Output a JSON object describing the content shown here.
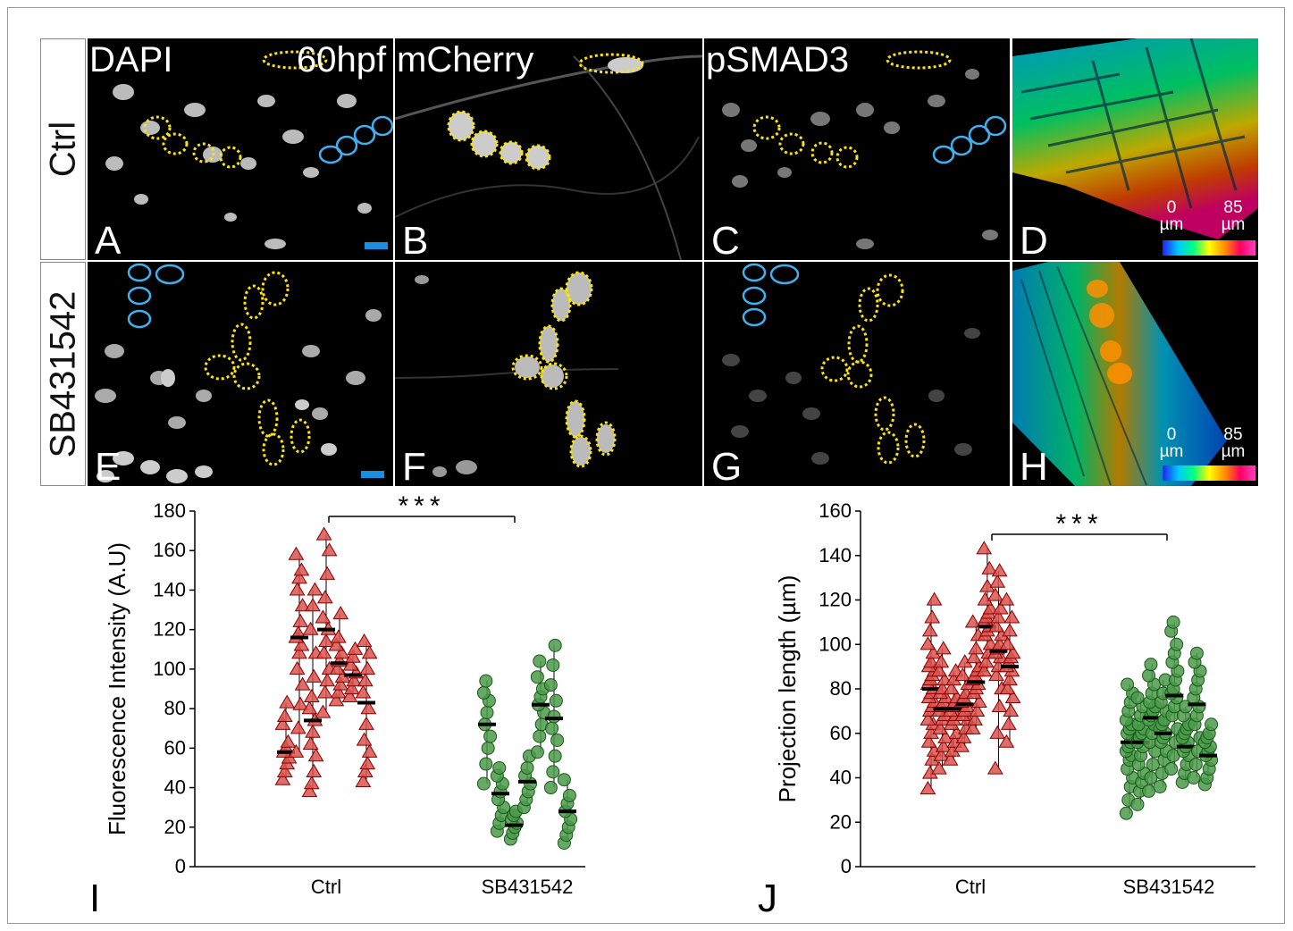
{
  "row_labels": [
    "Ctrl",
    "SB431542"
  ],
  "panels": [
    {
      "letter": "A",
      "title": "DAPI",
      "extra": "60hpf"
    },
    {
      "letter": "B",
      "title": "mCherry"
    },
    {
      "letter": "C",
      "title": "pSMAD3"
    },
    {
      "letter": "D"
    },
    {
      "letter": "E"
    },
    {
      "letter": "F"
    },
    {
      "letter": "G"
    },
    {
      "letter": "H"
    }
  ],
  "depth_colorbar": {
    "min_value": "0",
    "max_value": "85",
    "unit": "µm"
  },
  "chart_data": [
    {
      "panel_letter": "I",
      "type": "scatter",
      "ylabel": "Fluorescence Intensity (A.U)",
      "xlabel": "",
      "categories": [
        "Ctrl",
        "SB431542"
      ],
      "ylim": [
        0,
        180
      ],
      "yticks": [
        0,
        20,
        40,
        60,
        80,
        100,
        120,
        140,
        160,
        180
      ],
      "significance": "***",
      "series": [
        {
          "group": "Ctrl",
          "marker": "triangle",
          "color": "#d9534f",
          "edge": "#8b0000",
          "replicates": [
            {
              "values": [
                44,
                48,
                52,
                55,
                58,
                60,
                63,
                72,
                76,
                83
              ],
              "mean": 58
            },
            {
              "values": [
                58,
                70,
                82,
                92,
                100,
                108,
                112,
                116,
                118,
                124,
                132,
                140,
                146,
                150,
                158
              ],
              "mean": 116
            },
            {
              "values": [
                38,
                42,
                48,
                56,
                62,
                68,
                74,
                80,
                86,
                96,
                108,
                120,
                132,
                140
              ],
              "mean": 74
            },
            {
              "values": [
                78,
                88,
                94,
                100,
                108,
                114,
                120,
                126,
                136,
                148,
                160,
                168
              ],
              "mean": 120
            },
            {
              "values": [
                84,
                88,
                92,
                96,
                100,
                104,
                108,
                112,
                116,
                128
              ],
              "mean": 103
            },
            {
              "values": [
                86,
                90,
                94,
                98,
                102,
                106,
                110
              ],
              "mean": 97
            },
            {
              "values": [
                43,
                48,
                52,
                58,
                64,
                72,
                80,
                88,
                94,
                100,
                108,
                114
              ],
              "mean": 83
            }
          ]
        },
        {
          "group": "SB431542",
          "marker": "circle",
          "color": "#4a9a4a",
          "edge": "#1a5a1a",
          "replicates": [
            {
              "values": [
                42,
                52,
                60,
                66,
                72,
                78,
                84,
                88,
                94
              ],
              "mean": 72
            },
            {
              "values": [
                18,
                22,
                26,
                30,
                34,
                38,
                42,
                46,
                50
              ],
              "mean": 37
            },
            {
              "values": [
                14,
                17,
                20,
                22,
                24,
                26,
                28
              ],
              "mean": 21
            },
            {
              "values": [
                30,
                34,
                38,
                42,
                46,
                50,
                56
              ],
              "mean": 43
            },
            {
              "values": [
                58,
                66,
                72,
                78,
                82,
                86,
                90,
                96,
                104
              ],
              "mean": 82
            },
            {
              "values": [
                40,
                48,
                56,
                64,
                70,
                76,
                84,
                92,
                102,
                112
              ],
              "mean": 75
            },
            {
              "values": [
                12,
                16,
                20,
                24,
                28,
                32,
                36,
                44
              ],
              "mean": 28
            }
          ]
        }
      ]
    },
    {
      "panel_letter": "J",
      "type": "scatter",
      "ylabel": "Projection length (µm)",
      "xlabel": "",
      "categories": [
        "Ctrl",
        "SB431542"
      ],
      "ylim": [
        0,
        160
      ],
      "yticks": [
        0,
        20,
        40,
        60,
        80,
        100,
        120,
        140,
        160
      ],
      "significance": "***",
      "series": [
        {
          "group": "Ctrl",
          "marker": "triangle",
          "color": "#d9534f",
          "edge": "#8b0000",
          "replicates": [
            {
              "values": [
                35,
                42,
                48,
                52,
                56,
                60,
                64,
                66,
                70,
                72,
                74,
                76,
                78,
                80,
                82,
                84,
                86,
                88,
                90,
                92,
                96,
                100,
                106,
                112,
                120
              ],
              "mean": 80
            },
            {
              "values": [
                44,
                50,
                54,
                58,
                62,
                66,
                68,
                70,
                72,
                74,
                76,
                78,
                80,
                84,
                88,
                92,
                98
              ],
              "mean": 71
            },
            {
              "values": [
                48,
                52,
                56,
                60,
                64,
                66,
                68,
                70,
                72,
                74,
                76,
                80,
                84,
                88
              ],
              "mean": 71
            },
            {
              "values": [
                54,
                58,
                62,
                66,
                68,
                70,
                72,
                74,
                76,
                78,
                82,
                86,
                92
              ],
              "mean": 73
            },
            {
              "values": [
                62,
                66,
                70,
                74,
                78,
                80,
                82,
                84,
                86,
                88,
                90,
                94,
                98,
                104,
                110
              ],
              "mean": 83
            },
            {
              "values": [
                88,
                92,
                96,
                100,
                104,
                106,
                108,
                110,
                112,
                114,
                116,
                120,
                126,
                134,
                143
              ],
              "mean": 108
            },
            {
              "values": [
                44,
                60,
                72,
                80,
                86,
                90,
                94,
                96,
                98,
                100,
                104,
                108,
                112,
                116,
                122,
                128,
                133
              ],
              "mean": 97
            },
            {
              "values": [
                56,
                64,
                70,
                76,
                80,
                84,
                88,
                90,
                92,
                94,
                96,
                100,
                106,
                112,
                120
              ],
              "mean": 90
            }
          ]
        },
        {
          "group": "SB431542",
          "marker": "circle",
          "color": "#4a9a4a",
          "edge": "#1a5a1a",
          "replicates": [
            {
              "values": [
                24,
                30,
                36,
                40,
                44,
                48,
                50,
                52,
                54,
                56,
                58,
                60,
                62,
                64,
                66,
                70,
                74,
                78,
                82
              ],
              "mean": 56
            },
            {
              "values": [
                28,
                34,
                38,
                42,
                46,
                50,
                54,
                56,
                58,
                60,
                62,
                64,
                68,
                72,
                76
              ],
              "mean": 56
            },
            {
              "values": [
                34,
                40,
                46,
                52,
                56,
                60,
                64,
                66,
                68,
                70,
                72,
                74,
                78,
                82,
                86,
                91
              ],
              "mean": 67
            },
            {
              "values": [
                36,
                42,
                48,
                52,
                56,
                58,
                60,
                62,
                64,
                66,
                70,
                74,
                78,
                84
              ],
              "mean": 60
            },
            {
              "values": [
                44,
                50,
                56,
                62,
                68,
                72,
                76,
                78,
                80,
                84,
                88,
                92,
                96,
                100,
                106,
                110
              ],
              "mean": 77
            },
            {
              "values": [
                38,
                42,
                46,
                50,
                52,
                54,
                56,
                58,
                60,
                62,
                64,
                68,
                72
              ],
              "mean": 54
            },
            {
              "values": [
                40,
                46,
                52,
                58,
                64,
                68,
                72,
                76,
                80,
                84,
                88,
                92,
                96
              ],
              "mean": 73
            },
            {
              "values": [
                37,
                40,
                44,
                48,
                50,
                52,
                54,
                56,
                58,
                60,
                64
              ],
              "mean": 50
            }
          ]
        }
      ]
    }
  ]
}
